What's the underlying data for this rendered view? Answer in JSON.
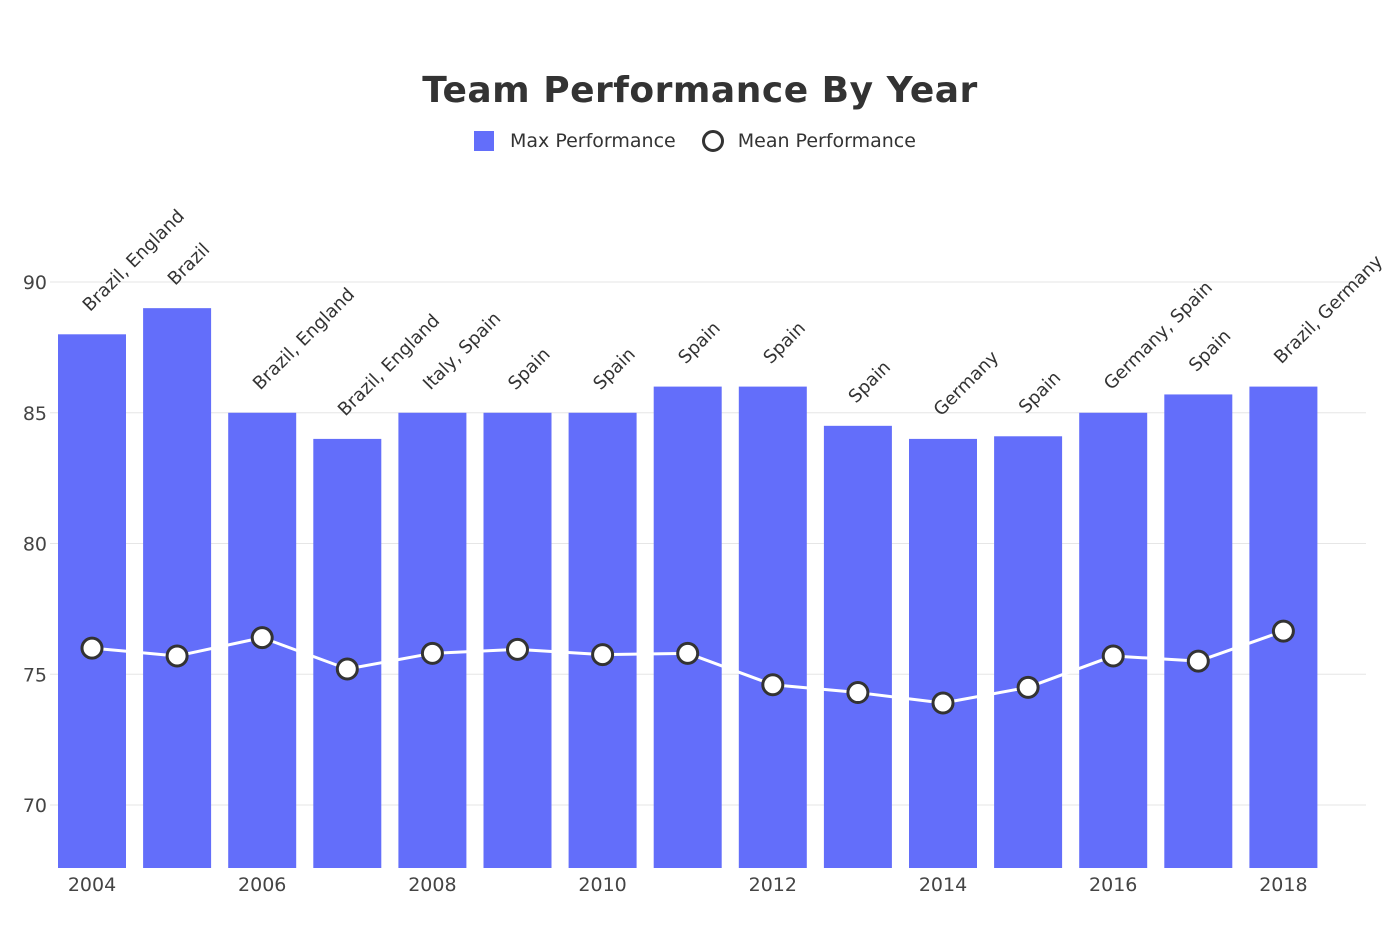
{
  "chart_data": {
    "type": "bar",
    "title": "Team Performance By Year",
    "x": [
      2004,
      2005,
      2006,
      2007,
      2008,
      2009,
      2010,
      2011,
      2012,
      2013,
      2014,
      2015,
      2016,
      2017,
      2018
    ],
    "x_tick_values": [
      2004,
      2006,
      2008,
      2010,
      2012,
      2014,
      2016,
      2018
    ],
    "x_tick_labels": [
      "2004",
      "2006",
      "2008",
      "2010",
      "2012",
      "2014",
      "2016",
      "2018"
    ],
    "y_tick_values": [
      70,
      75,
      80,
      85,
      90
    ],
    "y_tick_labels": [
      "70",
      "75",
      "80",
      "85",
      "90"
    ],
    "ylim": [
      67.6,
      91.3
    ],
    "grid": true,
    "legend_placement": "top-center",
    "series": [
      {
        "name": "Max Performance",
        "type": "bar",
        "color": "#636efa",
        "values": [
          88,
          89,
          85,
          84,
          85,
          85,
          85,
          86,
          86,
          84.5,
          84,
          84.1,
          85,
          85.7,
          86
        ],
        "labels": [
          "Brazil, England",
          "Brazil",
          "Brazil, England",
          "Brazil, England",
          "Italy, Spain",
          "Spain",
          "Spain",
          "Spain",
          "Spain",
          "Spain",
          "Germany",
          "Spain",
          "Germany, Spain",
          "Spain",
          "Brazil, Germany"
        ]
      },
      {
        "name": "Mean Performance",
        "type": "line",
        "color": "#ffffff",
        "marker_outline": "#333333",
        "values": [
          76.0,
          75.7,
          76.4,
          75.2,
          75.8,
          75.95,
          75.75,
          75.8,
          74.6,
          74.3,
          73.9,
          74.5,
          75.7,
          75.5,
          76.65
        ]
      }
    ]
  }
}
